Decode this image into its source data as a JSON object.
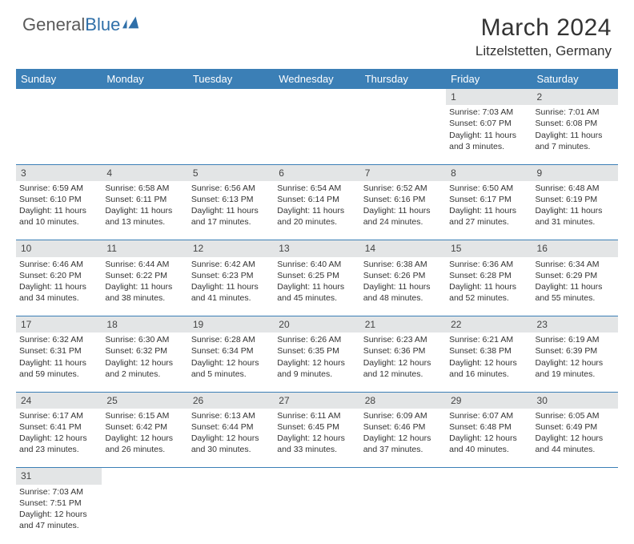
{
  "logo": {
    "text1": "General",
    "text2": "Blue",
    "icon_color": "#2f6fa8"
  },
  "title": "March 2024",
  "location": "Litzelstetten, Germany",
  "colors": {
    "header_bg": "#3b7fb6",
    "header_fg": "#ffffff",
    "daynum_bg": "#e3e5e6",
    "border": "#3b7fb6",
    "text": "#333333"
  },
  "day_headers": [
    "Sunday",
    "Monday",
    "Tuesday",
    "Wednesday",
    "Thursday",
    "Friday",
    "Saturday"
  ],
  "weeks": [
    [
      null,
      null,
      null,
      null,
      null,
      {
        "n": "1",
        "sr": "7:03 AM",
        "ss": "6:07 PM",
        "dl": "11 hours and 3 minutes."
      },
      {
        "n": "2",
        "sr": "7:01 AM",
        "ss": "6:08 PM",
        "dl": "11 hours and 7 minutes."
      }
    ],
    [
      {
        "n": "3",
        "sr": "6:59 AM",
        "ss": "6:10 PM",
        "dl": "11 hours and 10 minutes."
      },
      {
        "n": "4",
        "sr": "6:58 AM",
        "ss": "6:11 PM",
        "dl": "11 hours and 13 minutes."
      },
      {
        "n": "5",
        "sr": "6:56 AM",
        "ss": "6:13 PM",
        "dl": "11 hours and 17 minutes."
      },
      {
        "n": "6",
        "sr": "6:54 AM",
        "ss": "6:14 PM",
        "dl": "11 hours and 20 minutes."
      },
      {
        "n": "7",
        "sr": "6:52 AM",
        "ss": "6:16 PM",
        "dl": "11 hours and 24 minutes."
      },
      {
        "n": "8",
        "sr": "6:50 AM",
        "ss": "6:17 PM",
        "dl": "11 hours and 27 minutes."
      },
      {
        "n": "9",
        "sr": "6:48 AM",
        "ss": "6:19 PM",
        "dl": "11 hours and 31 minutes."
      }
    ],
    [
      {
        "n": "10",
        "sr": "6:46 AM",
        "ss": "6:20 PM",
        "dl": "11 hours and 34 minutes."
      },
      {
        "n": "11",
        "sr": "6:44 AM",
        "ss": "6:22 PM",
        "dl": "11 hours and 38 minutes."
      },
      {
        "n": "12",
        "sr": "6:42 AM",
        "ss": "6:23 PM",
        "dl": "11 hours and 41 minutes."
      },
      {
        "n": "13",
        "sr": "6:40 AM",
        "ss": "6:25 PM",
        "dl": "11 hours and 45 minutes."
      },
      {
        "n": "14",
        "sr": "6:38 AM",
        "ss": "6:26 PM",
        "dl": "11 hours and 48 minutes."
      },
      {
        "n": "15",
        "sr": "6:36 AM",
        "ss": "6:28 PM",
        "dl": "11 hours and 52 minutes."
      },
      {
        "n": "16",
        "sr": "6:34 AM",
        "ss": "6:29 PM",
        "dl": "11 hours and 55 minutes."
      }
    ],
    [
      {
        "n": "17",
        "sr": "6:32 AM",
        "ss": "6:31 PM",
        "dl": "11 hours and 59 minutes."
      },
      {
        "n": "18",
        "sr": "6:30 AM",
        "ss": "6:32 PM",
        "dl": "12 hours and 2 minutes."
      },
      {
        "n": "19",
        "sr": "6:28 AM",
        "ss": "6:34 PM",
        "dl": "12 hours and 5 minutes."
      },
      {
        "n": "20",
        "sr": "6:26 AM",
        "ss": "6:35 PM",
        "dl": "12 hours and 9 minutes."
      },
      {
        "n": "21",
        "sr": "6:23 AM",
        "ss": "6:36 PM",
        "dl": "12 hours and 12 minutes."
      },
      {
        "n": "22",
        "sr": "6:21 AM",
        "ss": "6:38 PM",
        "dl": "12 hours and 16 minutes."
      },
      {
        "n": "23",
        "sr": "6:19 AM",
        "ss": "6:39 PM",
        "dl": "12 hours and 19 minutes."
      }
    ],
    [
      {
        "n": "24",
        "sr": "6:17 AM",
        "ss": "6:41 PM",
        "dl": "12 hours and 23 minutes."
      },
      {
        "n": "25",
        "sr": "6:15 AM",
        "ss": "6:42 PM",
        "dl": "12 hours and 26 minutes."
      },
      {
        "n": "26",
        "sr": "6:13 AM",
        "ss": "6:44 PM",
        "dl": "12 hours and 30 minutes."
      },
      {
        "n": "27",
        "sr": "6:11 AM",
        "ss": "6:45 PM",
        "dl": "12 hours and 33 minutes."
      },
      {
        "n": "28",
        "sr": "6:09 AM",
        "ss": "6:46 PM",
        "dl": "12 hours and 37 minutes."
      },
      {
        "n": "29",
        "sr": "6:07 AM",
        "ss": "6:48 PM",
        "dl": "12 hours and 40 minutes."
      },
      {
        "n": "30",
        "sr": "6:05 AM",
        "ss": "6:49 PM",
        "dl": "12 hours and 44 minutes."
      }
    ],
    [
      {
        "n": "31",
        "sr": "7:03 AM",
        "ss": "7:51 PM",
        "dl": "12 hours and 47 minutes."
      },
      null,
      null,
      null,
      null,
      null,
      null
    ]
  ],
  "labels": {
    "sunrise": "Sunrise: ",
    "sunset": "Sunset: ",
    "daylight": "Daylight: "
  }
}
